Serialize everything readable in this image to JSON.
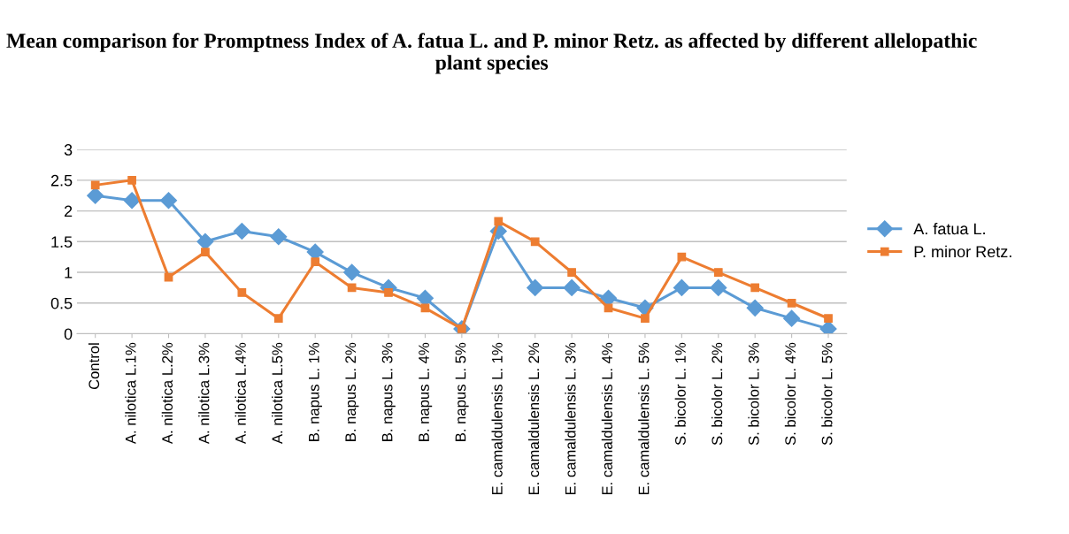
{
  "chart_data": {
    "type": "line",
    "title": "Mean comparison for Promptness Index of A. fatua L. and P. minor Retz. as affected by different allelopathic plant species",
    "categories": [
      "Control",
      "A. nilotica L.1%",
      "A. nilotica L.2%",
      "A. nilotica L.3%",
      "A. nilotica L.4%",
      "A. nilotica L.5%",
      "B. napus L. 1%",
      "B. napus L. 2%",
      "B. napus L. 3%",
      "B. napus L. 4%",
      "B. napus L. 5%",
      "E. camaldulensis L. 1%",
      "E. camaldulensis L. 2%",
      "E. camaldulensis L. 3%",
      "E. camaldulensis L. 4%",
      "E. camaldulensis L. 5%",
      "S. bicolor L. 1%",
      "S. bicolor L. 2%",
      "S. bicolor L. 3%",
      "S. bicolor L. 4%",
      "S. bicolor L. 5%"
    ],
    "series": [
      {
        "name": "A. fatua L.",
        "color": "#5b9bd5",
        "marker": "diamond",
        "values": [
          2.25,
          2.17,
          2.17,
          1.5,
          1.67,
          1.58,
          1.33,
          1.0,
          0.75,
          0.58,
          0.08,
          1.67,
          0.75,
          0.75,
          0.58,
          0.42,
          0.75,
          0.75,
          0.42,
          0.25,
          0.08
        ]
      },
      {
        "name": "P. minor Retz.",
        "color": "#ed7d31",
        "marker": "square",
        "values": [
          2.42,
          2.5,
          0.92,
          1.33,
          0.67,
          0.25,
          1.17,
          0.75,
          0.67,
          0.42,
          0.08,
          1.83,
          1.5,
          1.0,
          0.42,
          0.25,
          1.25,
          1.0,
          0.75,
          0.5,
          0.25
        ]
      }
    ],
    "ylim": [
      0,
      3
    ],
    "yticks": [
      0,
      0.5,
      1,
      1.5,
      2,
      2.5,
      3
    ],
    "grid": "y",
    "legend": "right",
    "line_style": "solid"
  }
}
